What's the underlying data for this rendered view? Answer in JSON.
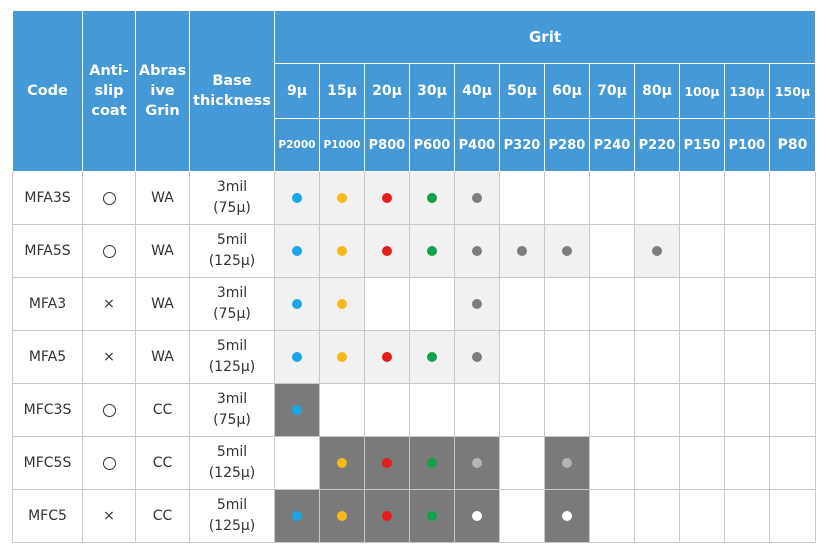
{
  "header": {
    "code": "Code",
    "anti_slip": [
      "Anti-",
      "slip",
      "coat"
    ],
    "abrasive": [
      "Abras",
      "ive",
      "Grin"
    ],
    "base": [
      "Base",
      "thickness"
    ],
    "grit": "Grit",
    "microns": [
      "9μ",
      "15μ",
      "20μ",
      "30μ",
      "40μ",
      "50μ",
      "60μ",
      "70μ",
      "80μ",
      "100μ",
      "130μ",
      "150μ"
    ],
    "p_grades": [
      "P2000",
      "P1000",
      "P800",
      "P600",
      "P400",
      "P320",
      "P280",
      "P240",
      "P220",
      "P150",
      "P100",
      "P80"
    ]
  },
  "colors": {
    "cyan": "#1aa6e4",
    "yellow": "#f7b81c",
    "red": "#e51c1c",
    "green": "#12a04a",
    "gray": "#7d7d7d",
    "lightgray": "#b4b4b4",
    "white": "#ffffff"
  },
  "rows": [
    {
      "code": "MFA3S",
      "anti": "circle",
      "abrasive": "WA",
      "thickness": [
        "3mil",
        "(75μ)"
      ],
      "cells": [
        [
          "cyan",
          "light"
        ],
        [
          "yellow",
          "light"
        ],
        [
          "red",
          "light"
        ],
        [
          "green",
          "light"
        ],
        [
          "gray",
          "light"
        ],
        [
          null,
          ""
        ],
        [
          null,
          ""
        ],
        [
          null,
          ""
        ],
        [
          null,
          ""
        ],
        [
          null,
          ""
        ],
        [
          null,
          ""
        ],
        [
          null,
          ""
        ]
      ]
    },
    {
      "code": "MFA5S",
      "anti": "circle",
      "abrasive": "WA",
      "thickness": [
        "5mil",
        "(125μ)"
      ],
      "cells": [
        [
          "cyan",
          "light"
        ],
        [
          "yellow",
          "light"
        ],
        [
          "red",
          "light"
        ],
        [
          "green",
          "light"
        ],
        [
          "gray",
          "light"
        ],
        [
          "gray",
          "light"
        ],
        [
          "gray",
          "light"
        ],
        [
          null,
          ""
        ],
        [
          "gray",
          "light"
        ],
        [
          null,
          ""
        ],
        [
          null,
          ""
        ],
        [
          null,
          ""
        ]
      ]
    },
    {
      "code": "MFA3",
      "anti": "×",
      "abrasive": "WA",
      "thickness": [
        "3mil",
        "(75μ)"
      ],
      "cells": [
        [
          "cyan",
          "light"
        ],
        [
          "yellow",
          "light"
        ],
        [
          null,
          ""
        ],
        [
          null,
          ""
        ],
        [
          "gray",
          "light"
        ],
        [
          null,
          ""
        ],
        [
          null,
          ""
        ],
        [
          null,
          ""
        ],
        [
          null,
          ""
        ],
        [
          null,
          ""
        ],
        [
          null,
          ""
        ],
        [
          null,
          ""
        ]
      ]
    },
    {
      "code": "MFA5",
      "anti": "×",
      "abrasive": "WA",
      "thickness": [
        "5mil",
        "(125μ)"
      ],
      "cells": [
        [
          "cyan",
          "light"
        ],
        [
          "yellow",
          "light"
        ],
        [
          "red",
          "light"
        ],
        [
          "green",
          "light"
        ],
        [
          "gray",
          "light"
        ],
        [
          null,
          ""
        ],
        [
          null,
          ""
        ],
        [
          null,
          ""
        ],
        [
          null,
          ""
        ],
        [
          null,
          ""
        ],
        [
          null,
          ""
        ],
        [
          null,
          ""
        ]
      ]
    },
    {
      "code": "MFC3S",
      "anti": "circle",
      "abrasive": "CC",
      "thickness": [
        "3mil",
        "(75μ)"
      ],
      "cells": [
        [
          "cyan",
          "dark"
        ],
        [
          null,
          ""
        ],
        [
          null,
          ""
        ],
        [
          null,
          ""
        ],
        [
          null,
          ""
        ],
        [
          null,
          ""
        ],
        [
          null,
          ""
        ],
        [
          null,
          ""
        ],
        [
          null,
          ""
        ],
        [
          null,
          ""
        ],
        [
          null,
          ""
        ],
        [
          null,
          ""
        ]
      ]
    },
    {
      "code": "MFC5S",
      "anti": "circle",
      "abrasive": "CC",
      "thickness": [
        "5mil",
        "(125μ)"
      ],
      "cells": [
        [
          null,
          ""
        ],
        [
          "yellow",
          "dark"
        ],
        [
          "red",
          "dark"
        ],
        [
          "green",
          "dark"
        ],
        [
          "lightgray",
          "dark"
        ],
        [
          null,
          ""
        ],
        [
          "lightgray",
          "dark"
        ],
        [
          null,
          ""
        ],
        [
          null,
          ""
        ],
        [
          null,
          ""
        ],
        [
          null,
          ""
        ],
        [
          null,
          ""
        ]
      ]
    },
    {
      "code": "MFC5",
      "anti": "×",
      "abrasive": "CC",
      "thickness": [
        "5mil",
        "(125μ)"
      ],
      "cells": [
        [
          "cyan",
          "dark"
        ],
        [
          "yellow",
          "dark"
        ],
        [
          "red",
          "dark"
        ],
        [
          "green",
          "dark"
        ],
        [
          "white",
          "dark"
        ],
        [
          null,
          ""
        ],
        [
          "white",
          "dark"
        ],
        [
          null,
          ""
        ],
        [
          null,
          ""
        ],
        [
          null,
          ""
        ],
        [
          null,
          ""
        ],
        [
          null,
          ""
        ]
      ]
    }
  ]
}
